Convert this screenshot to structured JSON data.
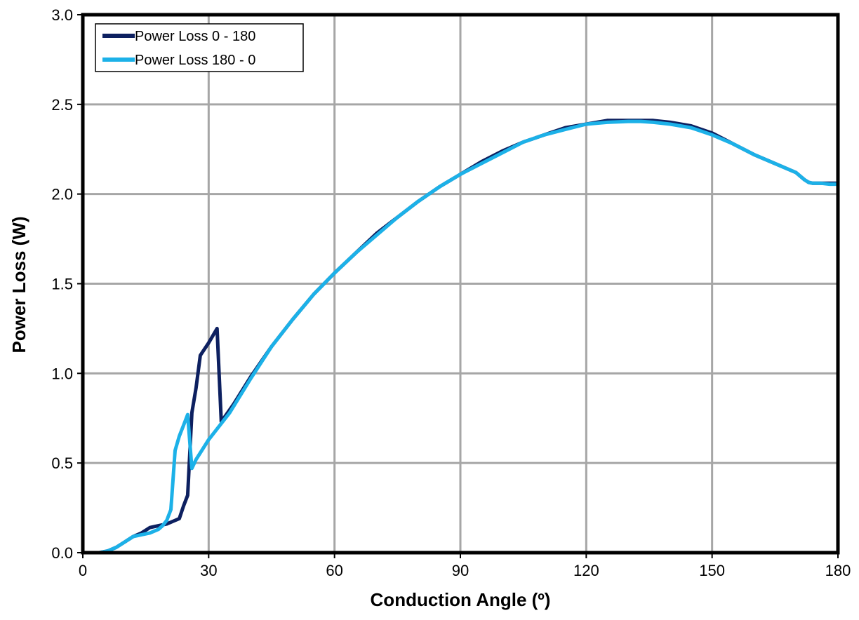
{
  "chart_data": {
    "type": "line",
    "title": "",
    "xlabel": "Conduction Angle (º)",
    "ylabel": "Power Loss (W)",
    "xlim": [
      0,
      180
    ],
    "ylim": [
      0,
      3.0
    ],
    "xticks": [
      0,
      30,
      60,
      90,
      120,
      150,
      180
    ],
    "xtick_labels": [
      "0",
      "30",
      "60",
      "90",
      "120",
      "150",
      "180"
    ],
    "yticks": [
      0,
      0.5,
      1.0,
      1.5,
      2.0,
      2.5,
      3.0
    ],
    "ytick_labels": [
      "0.0",
      "0.5",
      "1.0",
      "1.5",
      "2.0",
      "2.5",
      "3.0"
    ],
    "grid": true,
    "legend_position": "top-left",
    "series": [
      {
        "name": "Power Loss 0 - 180",
        "color": "#0d2060",
        "x": [
          0,
          2,
          4,
          6,
          8,
          10,
          12,
          14,
          16,
          18,
          20,
          22,
          23,
          24,
          25,
          26,
          27,
          28,
          30,
          32,
          33,
          36,
          40,
          45,
          50,
          55,
          60,
          65,
          70,
          75,
          80,
          85,
          90,
          95,
          100,
          105,
          110,
          115,
          120,
          125,
          130,
          133,
          136,
          140,
          145,
          150,
          155,
          160,
          165,
          170,
          171,
          172,
          173,
          174,
          176,
          178,
          180
        ],
        "y": [
          0.0,
          0.0,
          0.0,
          0.01,
          0.03,
          0.06,
          0.09,
          0.11,
          0.14,
          0.15,
          0.16,
          0.18,
          0.19,
          0.26,
          0.32,
          0.78,
          0.92,
          1.1,
          1.17,
          1.25,
          0.73,
          0.83,
          0.98,
          1.15,
          1.3,
          1.44,
          1.56,
          1.67,
          1.78,
          1.87,
          1.96,
          2.04,
          2.11,
          2.18,
          2.24,
          2.29,
          2.33,
          2.37,
          2.39,
          2.41,
          2.41,
          2.41,
          2.41,
          2.4,
          2.38,
          2.34,
          2.28,
          2.22,
          2.17,
          2.12,
          2.1,
          2.08,
          2.065,
          2.06,
          2.06,
          2.06,
          2.06
        ]
      },
      {
        "name": "Power Loss 180 - 0",
        "color": "#1cb1e8",
        "x": [
          0,
          2,
          4,
          6,
          8,
          10,
          12,
          14,
          16,
          18,
          19,
          20,
          21,
          22,
          23,
          24,
          25,
          26,
          27,
          30,
          35,
          40,
          45,
          50,
          55,
          60,
          65,
          70,
          75,
          80,
          85,
          90,
          95,
          100,
          105,
          110,
          115,
          120,
          125,
          130,
          133,
          136,
          140,
          145,
          150,
          155,
          160,
          165,
          170,
          171,
          172,
          173,
          174,
          176,
          178,
          180
        ],
        "y": [
          0.0,
          0.0,
          0.0,
          0.01,
          0.03,
          0.06,
          0.09,
          0.1,
          0.11,
          0.13,
          0.15,
          0.18,
          0.24,
          0.57,
          0.65,
          0.71,
          0.77,
          0.47,
          0.52,
          0.63,
          0.78,
          0.97,
          1.15,
          1.3,
          1.44,
          1.56,
          1.67,
          1.77,
          1.87,
          1.96,
          2.04,
          2.11,
          2.17,
          2.23,
          2.29,
          2.33,
          2.36,
          2.39,
          2.4,
          2.405,
          2.405,
          2.4,
          2.39,
          2.37,
          2.33,
          2.28,
          2.22,
          2.17,
          2.12,
          2.1,
          2.08,
          2.065,
          2.06,
          2.06,
          2.055,
          2.055
        ]
      }
    ]
  }
}
